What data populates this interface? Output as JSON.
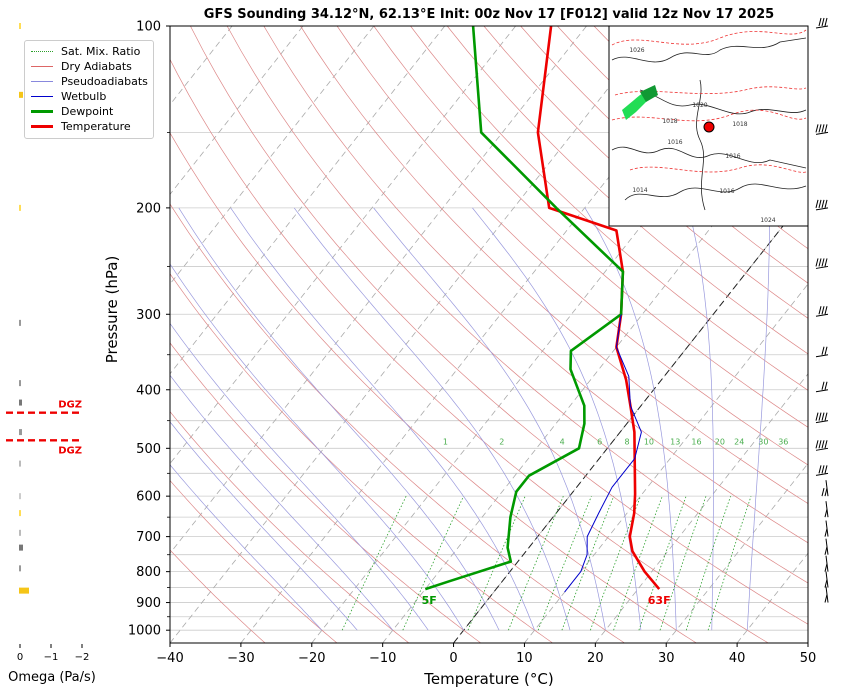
{
  "title": "GFS Sounding 34.12°N, 62.13°E Init: 00z Nov 17 [F012] valid 12z Nov 17 2025",
  "chart_data": {
    "type": "line",
    "title": "GFS Sounding 34.12°N, 62.13°E Init: 00z Nov 17 [F012] valid 12z Nov 17 2025",
    "xlabel": "Temperature (°C)",
    "ylabel": "Pressure (hPa)",
    "xlim": [
      -40,
      50
    ],
    "ylim": [
      1050,
      100
    ],
    "y_scale": "log",
    "skew": "skew-T",
    "x_ticks": [
      "−40",
      "−30",
      "−20",
      "−10",
      "0",
      "10",
      "20",
      "30",
      "40",
      "50"
    ],
    "y_ticks": [
      "100",
      "200",
      "300",
      "400",
      "500",
      "600",
      "700",
      "800",
      "900",
      "1000"
    ],
    "grid": true,
    "legend": {
      "position": "top-left",
      "entries": [
        {
          "name": "Sat. Mix. Ratio",
          "color": "#2ca02c",
          "style": "dotted"
        },
        {
          "name": "Dry Adiabats",
          "color": "#d62728",
          "style": "solid-thin"
        },
        {
          "name": "Pseudoadiabats",
          "color": "#1f1fbf",
          "style": "solid-thin"
        },
        {
          "name": "Wetbulb",
          "color": "#0000cc",
          "style": "solid"
        },
        {
          "name": "Dewpoint",
          "color": "#009900",
          "style": "solid-thick"
        },
        {
          "name": "Temperature",
          "color": "#ee0000",
          "style": "solid-thick"
        }
      ]
    },
    "series": [
      {
        "name": "Temperature",
        "color": "#ee0000",
        "points": [
          [
            23,
            855
          ],
          [
            19,
            800
          ],
          [
            15,
            740
          ],
          [
            13,
            700
          ],
          [
            11,
            640
          ],
          [
            9,
            595
          ],
          [
            5,
            520
          ],
          [
            2,
            470
          ],
          [
            -1.5,
            425
          ],
          [
            -5,
            385
          ],
          [
            -10,
            340
          ],
          [
            -13,
            300
          ],
          [
            -17.5,
            255
          ],
          [
            -23,
            218
          ],
          [
            -35,
            200
          ],
          [
            -45,
            150
          ],
          [
            -55,
            100
          ]
        ]
      },
      {
        "name": "Dewpoint",
        "color": "#009900",
        "points": [
          [
            -10,
            855
          ],
          [
            -7.5,
            830
          ],
          [
            -1,
            770
          ],
          [
            -3,
            730
          ],
          [
            -6,
            650
          ],
          [
            -8,
            590
          ],
          [
            -8,
            555
          ],
          [
            -4,
            500
          ],
          [
            -6,
            455
          ],
          [
            -8,
            425
          ],
          [
            -14,
            370
          ],
          [
            -16,
            345
          ],
          [
            -13,
            300
          ],
          [
            -17.5,
            255
          ],
          [
            -34,
            200
          ],
          [
            -53,
            150
          ],
          [
            -66,
            100
          ]
        ]
      },
      {
        "name": "Wetbulb",
        "color": "#0000cc",
        "points": [
          [
            10,
            865
          ],
          [
            10,
            800
          ],
          [
            9,
            750
          ],
          [
            7,
            700
          ],
          [
            6,
            640
          ],
          [
            5,
            580
          ],
          [
            5,
            520
          ],
          [
            3,
            470
          ],
          [
            -1.5,
            425
          ],
          [
            -5,
            380
          ],
          [
            -10,
            340
          ],
          [
            -13,
            300
          ]
        ]
      }
    ],
    "annotations": [
      {
        "text": "5F",
        "color": "#009900"
      },
      {
        "text": "63F",
        "color": "#ee0000"
      }
    ],
    "mixing_ratio_labels": [
      "1",
      "2",
      "4",
      "6",
      "8",
      "10",
      "13",
      "16",
      "20",
      "24",
      "30",
      "36"
    ],
    "omega_panel": {
      "xlabel": "Omega (Pa/s)",
      "ticks": [
        "0",
        "−1",
        "−2"
      ],
      "dgz_label": "DGZ",
      "dgz_bounds_hpa": [
        450,
        500
      ]
    },
    "map_inset": {
      "description_hidden": true,
      "marker": "red-dot",
      "isobar_labels": [
        "1026",
        "1020",
        "1018",
        "1016",
        "1016",
        "1016",
        "1024",
        "1014",
        "1018"
      ]
    }
  }
}
